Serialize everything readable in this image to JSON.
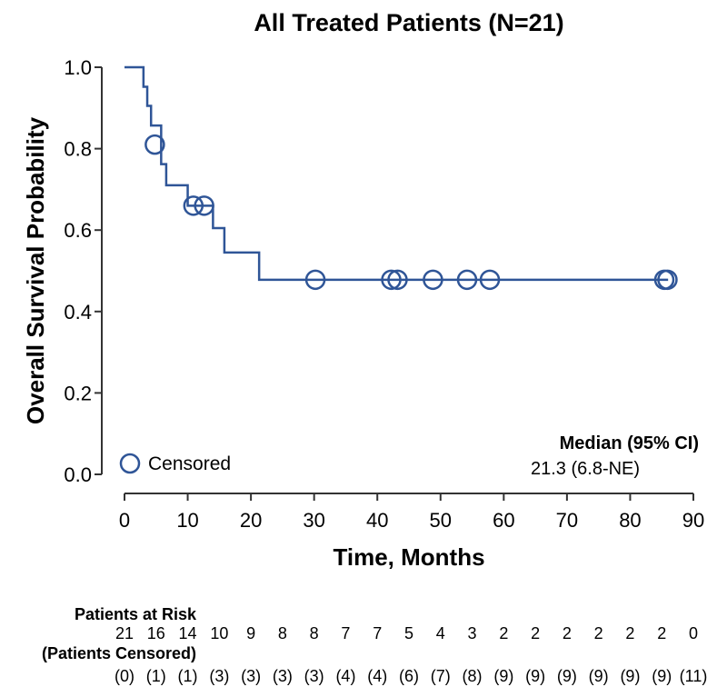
{
  "chart_data": {
    "type": "line",
    "title": "All Treated Patients (N=21)",
    "xlabel": "Time, Months",
    "ylabel": "Overall Survival Probability",
    "xlim": [
      0,
      90
    ],
    "ylim": [
      0,
      1.0
    ],
    "xticks": [
      "0",
      "10",
      "20",
      "30",
      "40",
      "50",
      "60",
      "70",
      "80",
      "90"
    ],
    "yticks": [
      "0.0",
      "0.2",
      "0.4",
      "0.6",
      "0.8",
      "1.0"
    ],
    "xtick_values": [
      0,
      10,
      20,
      30,
      40,
      50,
      60,
      70,
      80,
      90
    ],
    "ytick_values": [
      0,
      0.2,
      0.4,
      0.6,
      0.8,
      1.0
    ],
    "grid": false,
    "series": [
      {
        "color": "#2f5597",
        "survival_steps": [
          [
            0,
            1.0
          ],
          [
            3.0,
            0.952
          ],
          [
            3.6,
            0.905
          ],
          [
            4.2,
            0.857
          ],
          [
            5.8,
            0.762
          ],
          [
            6.6,
            0.71
          ],
          [
            10.0,
            0.66
          ],
          [
            14.0,
            0.605
          ],
          [
            15.8,
            0.545
          ],
          [
            21.3,
            0.478
          ],
          [
            86.0,
            0.478
          ]
        ],
        "censored": [
          [
            4.8,
            0.81
          ],
          [
            10.9,
            0.66
          ],
          [
            12.6,
            0.66
          ],
          [
            30.2,
            0.478
          ],
          [
            42.2,
            0.478
          ],
          [
            43.2,
            0.478
          ],
          [
            48.8,
            0.478
          ],
          [
            54.2,
            0.478
          ],
          [
            57.8,
            0.478
          ],
          [
            85.4,
            0.478
          ],
          [
            85.9,
            0.478
          ]
        ]
      }
    ],
    "legend": {
      "label": "Censored",
      "placement": "bottom-left"
    },
    "annotation": {
      "title": "Median (95% CI)",
      "value": "21.3 (6.8-NE)",
      "placement": "bottom-right"
    },
    "risk_table": {
      "at_risk_label": "Patients at Risk",
      "censored_label": "(Patients Censored)",
      "times": [
        0,
        5,
        10,
        15,
        20,
        25,
        30,
        35,
        40,
        45,
        50,
        55,
        60,
        65,
        70,
        75,
        80,
        85,
        90
      ],
      "at_risk": [
        "21",
        "16",
        "14",
        "10",
        "9",
        "8",
        "8",
        "7",
        "7",
        "5",
        "4",
        "3",
        "2",
        "2",
        "2",
        "2",
        "2",
        "2",
        "0"
      ],
      "censored": [
        "(0)",
        "(1)",
        "(1)",
        "(3)",
        "(3)",
        "(3)",
        "(3)",
        "(4)",
        "(4)",
        "(6)",
        "(7)",
        "(8)",
        "(9)",
        "(9)",
        "(9)",
        "(9)",
        "(9)",
        "(9)",
        "(11)"
      ]
    }
  }
}
